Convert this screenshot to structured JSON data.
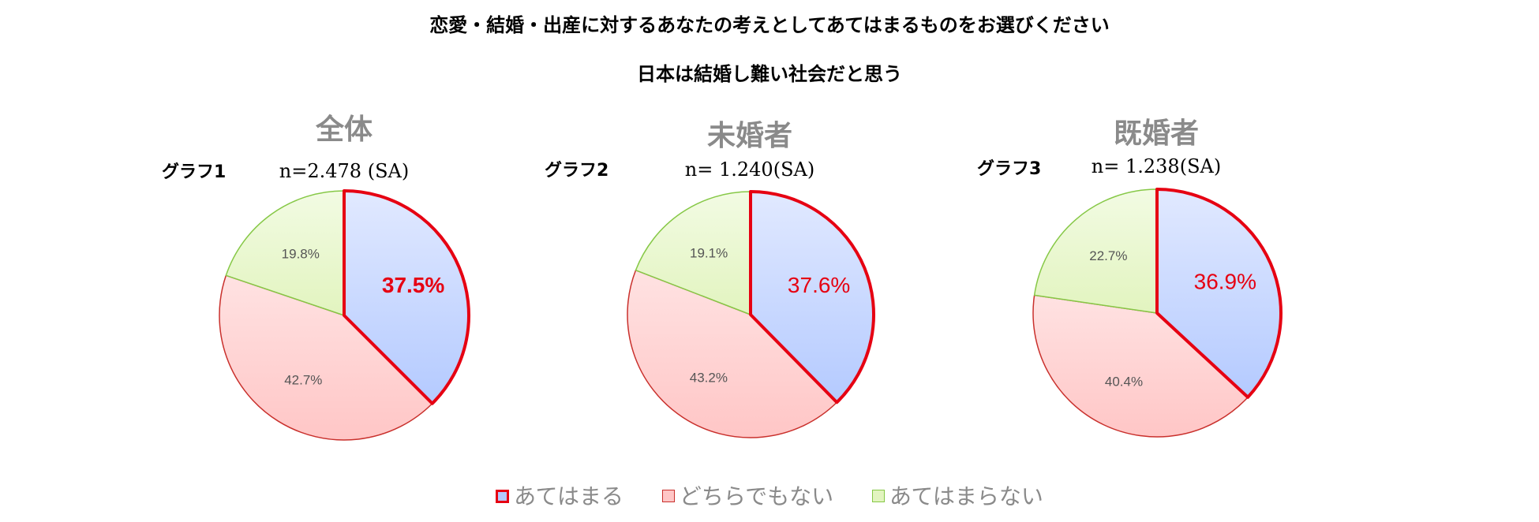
{
  "header": {
    "title": "恋愛・結婚・出産に対するあなたの考えとしてあてはまるものをお選びください",
    "subtitle": "日本は結婚し難い社会だと思う"
  },
  "legend": {
    "items": [
      "あてはまる",
      "どちらでもない",
      "あてはまらない"
    ]
  },
  "colors": {
    "applies_fill": "#b4caff",
    "applies_border": "#e60012",
    "neutral_fill": "#ffc6c6",
    "neutral_border": "#c9302c",
    "not_applies_fill": "#e2f4bf",
    "not_applies_border": "#86c846"
  },
  "chart_data": [
    {
      "type": "pie",
      "title": "全体",
      "graph_label": "グラフ1",
      "sample": "n=2.478 (SA)",
      "labels": [
        "あてはまる",
        "どちらでもない",
        "あてはまらない"
      ],
      "values": [
        37.5,
        42.7,
        19.8
      ],
      "value_labels": [
        "37.5%",
        "42.7%",
        "19.8%"
      ]
    },
    {
      "type": "pie",
      "title": "未婚者",
      "graph_label": "グラフ2",
      "sample": "n= 1.240(SA)",
      "labels": [
        "あてはまる",
        "どちらでもない",
        "あてはまらない"
      ],
      "values": [
        37.6,
        43.2,
        19.1
      ],
      "value_labels": [
        "37.6%",
        "43.2%",
        "19.1%"
      ]
    },
    {
      "type": "pie",
      "title": "既婚者",
      "graph_label": "グラフ3",
      "sample": "n= 1.238(SA)",
      "labels": [
        "あてはまる",
        "どちらでもない",
        "あてはまらない"
      ],
      "values": [
        36.9,
        40.4,
        22.7
      ],
      "value_labels": [
        "36.9%",
        "40.4%",
        "22.7%"
      ]
    }
  ]
}
